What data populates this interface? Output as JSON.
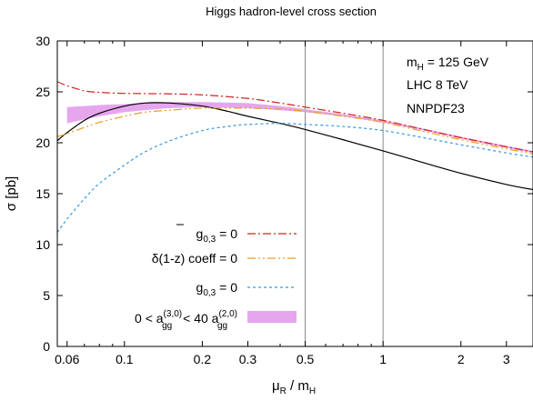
{
  "chart_data": {
    "type": "line",
    "title": "Higgs hadron-level cross section",
    "ylabel": "σ [pb]",
    "xlabel": {
      "mu": "μ",
      "mu_sub": "R",
      "sep": " / m",
      "m_sub": "H"
    },
    "xscale": "log",
    "xlim": [
      0.055,
      3.8
    ],
    "ylim": [
      0,
      30
    ],
    "grid": false,
    "legend_position": "bottom-left",
    "x_ticks": [
      {
        "value": 0.06,
        "label": "0.06"
      },
      {
        "value": 0.1,
        "label": "0.1"
      },
      {
        "value": 0.2,
        "label": "0.2"
      },
      {
        "value": 0.3,
        "label": "0.3"
      },
      {
        "value": 0.5,
        "label": "0.5"
      },
      {
        "value": 1,
        "label": "1"
      },
      {
        "value": 2,
        "label": "2"
      },
      {
        "value": 3,
        "label": "3"
      }
    ],
    "y_ticks": [
      {
        "value": 0,
        "label": "0"
      },
      {
        "value": 5,
        "label": "5"
      },
      {
        "value": 10,
        "label": "10"
      },
      {
        "value": 15,
        "label": "15"
      },
      {
        "value": 20,
        "label": "20"
      },
      {
        "value": 25,
        "label": "25"
      },
      {
        "value": 30,
        "label": "30"
      }
    ],
    "vlines": [
      0.5,
      1
    ],
    "annotations": {
      "mass": {
        "base": "m",
        "sub": "H",
        "rest": " = 125 GeV"
      },
      "collider": "LHC 8 TeV",
      "pdf": "NNPDF23"
    },
    "legend": [
      {
        "id": "gbar",
        "base": "g",
        "sub": "0,3",
        "rest": " = 0",
        "bar": true
      },
      {
        "id": "delta",
        "text": "δ(1-z) coeff = 0"
      },
      {
        "id": "g03",
        "base": "g",
        "sub": "0,3",
        "rest": " = 0",
        "bar": false
      },
      {
        "id": "band",
        "pre": "0 < a",
        "sup1": "(3,0)",
        "sub1": "gg",
        "mid": " < 40 a",
        "sup2": "(2,0)",
        "sub2": "gg"
      }
    ],
    "series": [
      {
        "id": "black",
        "color": "#000000",
        "style": "solid",
        "x": [
          0.055,
          0.06,
          0.07,
          0.08,
          0.1,
          0.12,
          0.15,
          0.2,
          0.25,
          0.3,
          0.4,
          0.5,
          0.7,
          1.0,
          1.5,
          2.0,
          3.0,
          3.8
        ],
        "y": [
          20.2,
          21.0,
          22.2,
          22.9,
          23.6,
          23.9,
          23.9,
          23.6,
          23.1,
          22.6,
          21.9,
          21.3,
          20.3,
          19.2,
          17.9,
          17.0,
          15.9,
          15.4
        ]
      },
      {
        "id": "gbar",
        "color": "#d42020",
        "style": "dashdot",
        "x": [
          0.055,
          0.06,
          0.07,
          0.08,
          0.1,
          0.15,
          0.2,
          0.3,
          0.4,
          0.5,
          0.7,
          1.0,
          1.5,
          2.0,
          3.0,
          3.8
        ],
        "y": [
          26.0,
          25.6,
          25.1,
          24.95,
          24.85,
          24.8,
          24.7,
          24.35,
          23.9,
          23.5,
          22.9,
          22.2,
          21.2,
          20.5,
          19.6,
          19.1
        ]
      },
      {
        "id": "delta",
        "color": "#e8a020",
        "style": "dashdotdot",
        "x": [
          0.055,
          0.06,
          0.07,
          0.08,
          0.1,
          0.12,
          0.15,
          0.2,
          0.3,
          0.4,
          0.5,
          0.7,
          1.0,
          1.5,
          2.0,
          3.0,
          3.8
        ],
        "y": [
          20.6,
          20.9,
          21.5,
          22.0,
          22.6,
          23.0,
          23.2,
          23.4,
          23.4,
          23.3,
          23.1,
          22.6,
          22.0,
          21.0,
          20.3,
          19.4,
          18.9
        ]
      },
      {
        "id": "g03",
        "color": "#3399dd",
        "style": "dotted",
        "x": [
          0.055,
          0.06,
          0.07,
          0.08,
          0.1,
          0.12,
          0.15,
          0.2,
          0.25,
          0.3,
          0.4,
          0.5,
          0.7,
          1.0,
          1.5,
          2.0,
          3.0,
          3.8
        ],
        "y": [
          11.2,
          12.5,
          14.5,
          16.0,
          17.8,
          19.1,
          20.2,
          21.2,
          21.6,
          21.8,
          21.9,
          21.8,
          21.6,
          21.2,
          20.4,
          19.8,
          19.0,
          18.6
        ]
      }
    ],
    "band": {
      "id": "band",
      "color": "#e6a6ee",
      "x": [
        0.06,
        0.07,
        0.08,
        0.1,
        0.12,
        0.15,
        0.2,
        0.3,
        0.4,
        0.5,
        0.7,
        1.0,
        1.5,
        2.0,
        3.0,
        3.8
      ],
      "lower": [
        21.9,
        22.3,
        22.6,
        23.0,
        23.2,
        23.4,
        23.5,
        23.4,
        23.2,
        23.0,
        22.6,
        22.0,
        21.1,
        20.4,
        19.5,
        19.0
      ],
      "upper": [
        23.5,
        23.6,
        23.7,
        23.8,
        23.9,
        24.0,
        24.0,
        23.9,
        23.6,
        23.3,
        22.8,
        22.2,
        21.3,
        20.6,
        19.7,
        19.2
      ]
    }
  }
}
